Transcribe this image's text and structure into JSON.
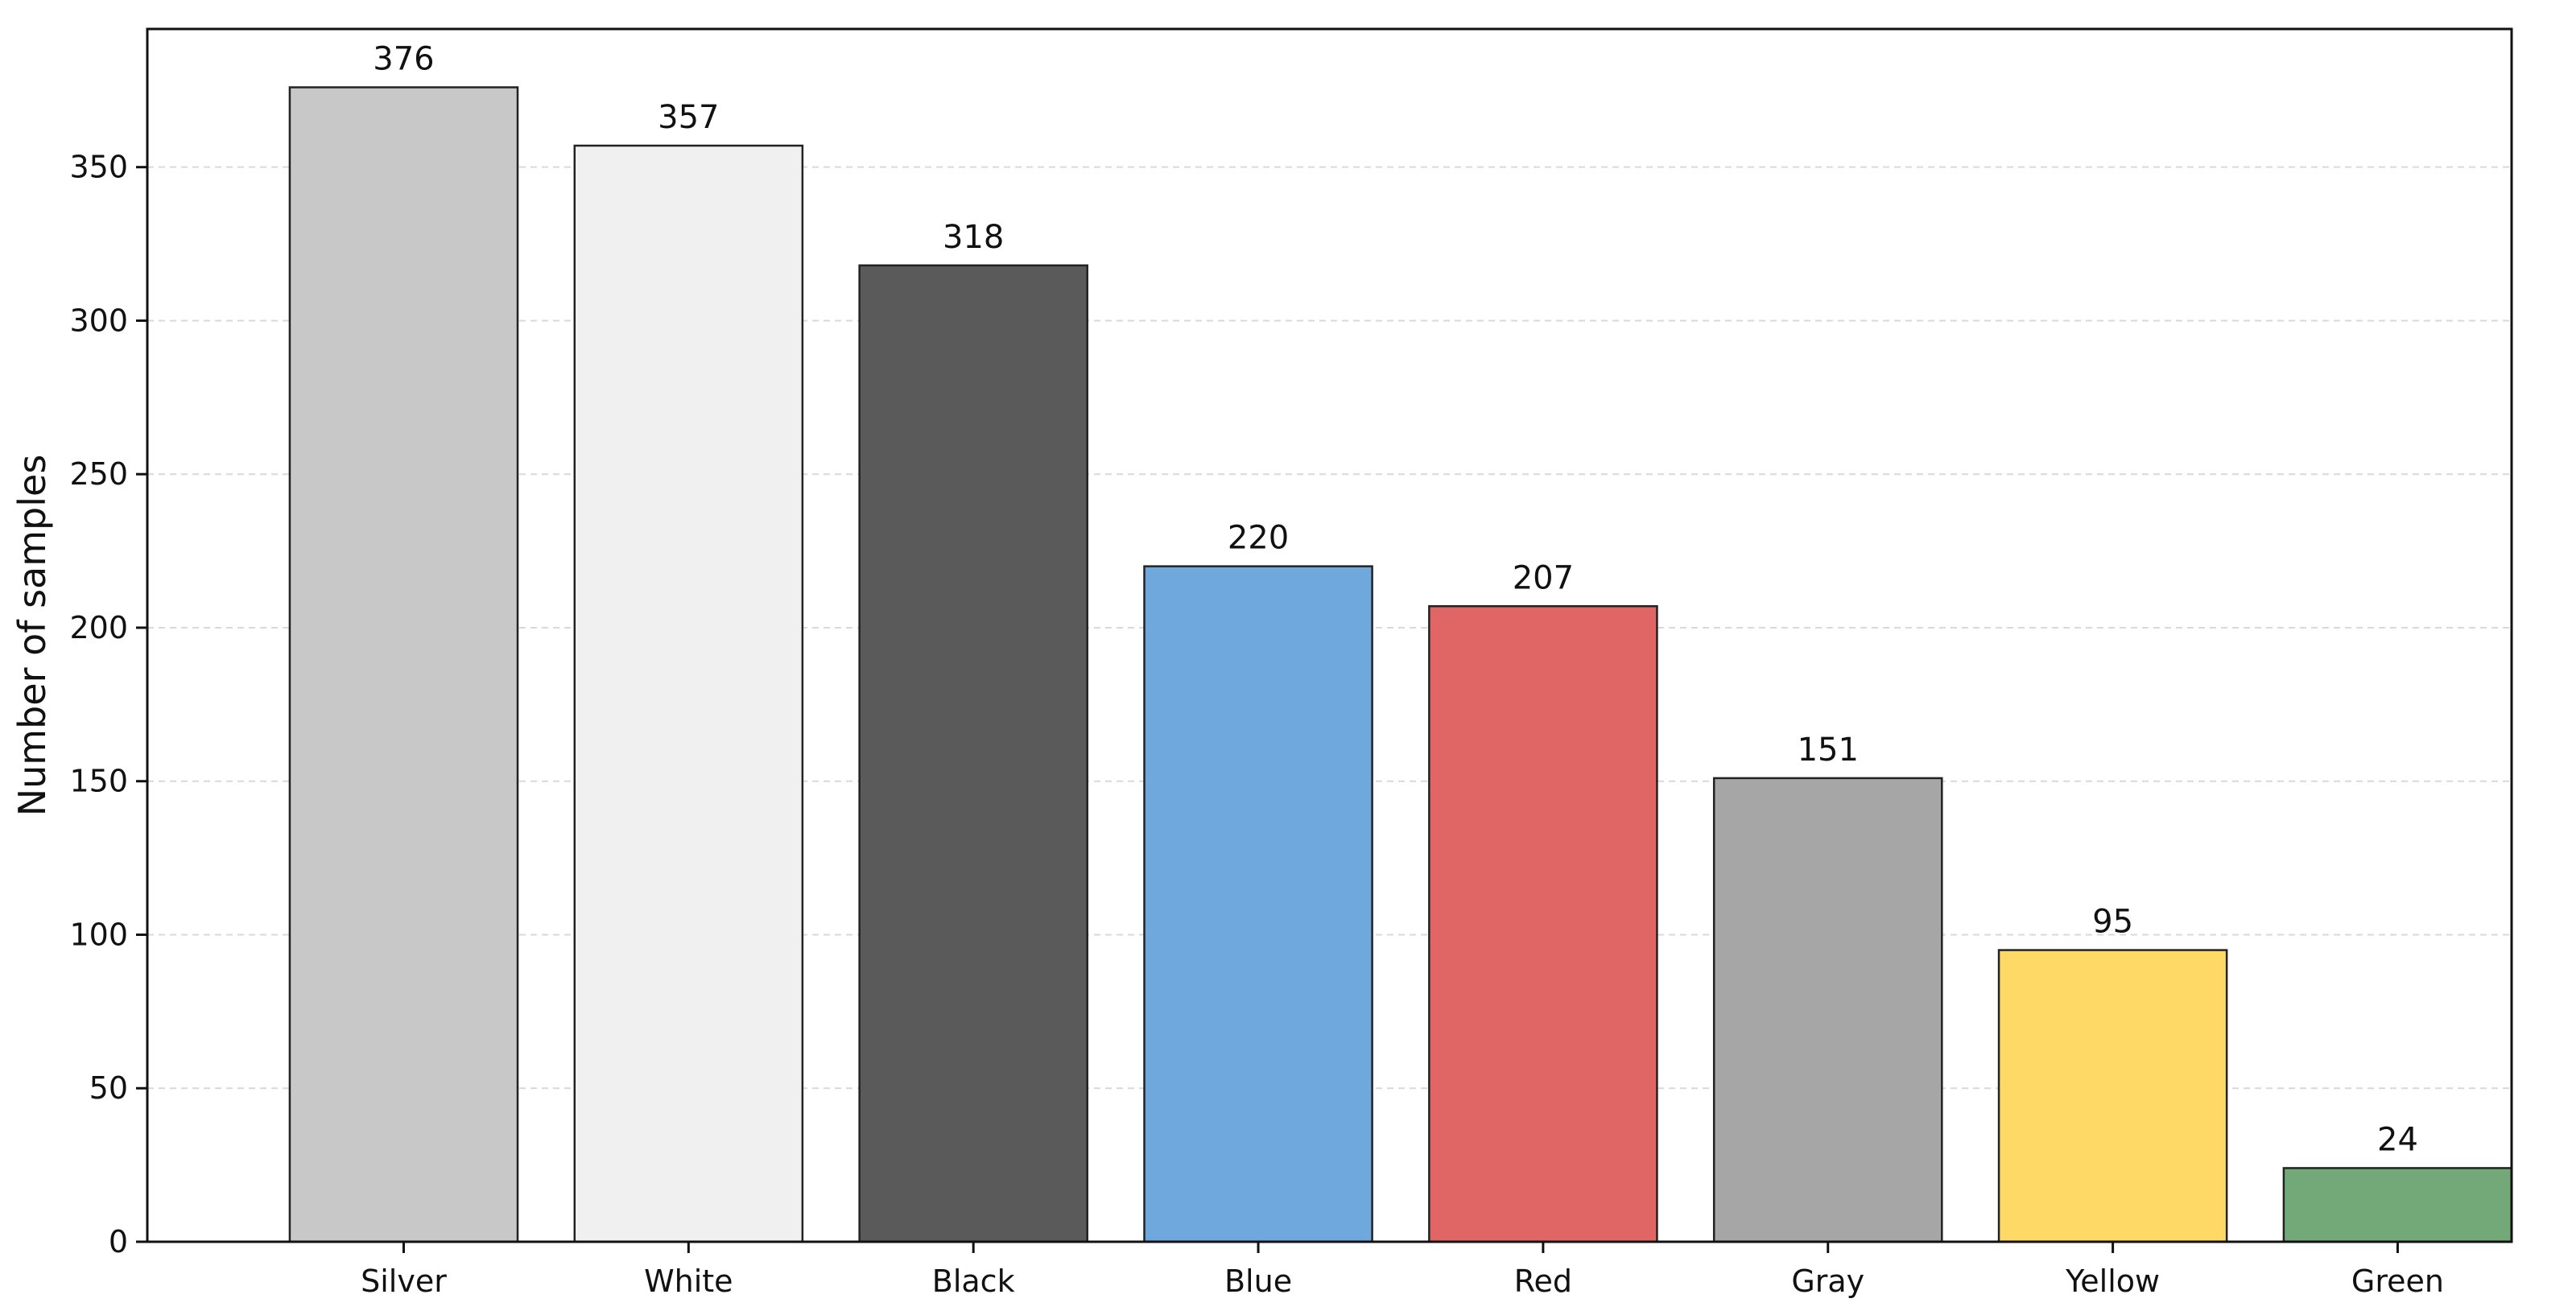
{
  "chart_data": {
    "type": "bar",
    "title": "",
    "xlabel": "",
    "ylabel": "Number of samples",
    "categories": [
      "Silver",
      "White",
      "Black",
      "Blue",
      "Red",
      "Gray",
      "Yellow",
      "Green"
    ],
    "values": [
      376,
      357,
      318,
      220,
      207,
      151,
      95,
      24
    ],
    "value_labels": [
      "376",
      "357",
      "318",
      "220",
      "207",
      "151",
      "95",
      "24"
    ],
    "bar_colors": [
      "#c8c8c8",
      "#f0f0f0",
      "#5a5a5a",
      "#6fa8dc",
      "#e06666",
      "#a6a6a6",
      "#ffd966",
      "#73a878"
    ],
    "ylim": [
      0,
      395
    ],
    "yticks": [
      0,
      50,
      100,
      150,
      200,
      250,
      300,
      350
    ],
    "ytick_labels": [
      "0",
      "50",
      "100",
      "150",
      "200",
      "250",
      "300",
      "350"
    ],
    "grid": "y-dashed",
    "legend": "none"
  }
}
